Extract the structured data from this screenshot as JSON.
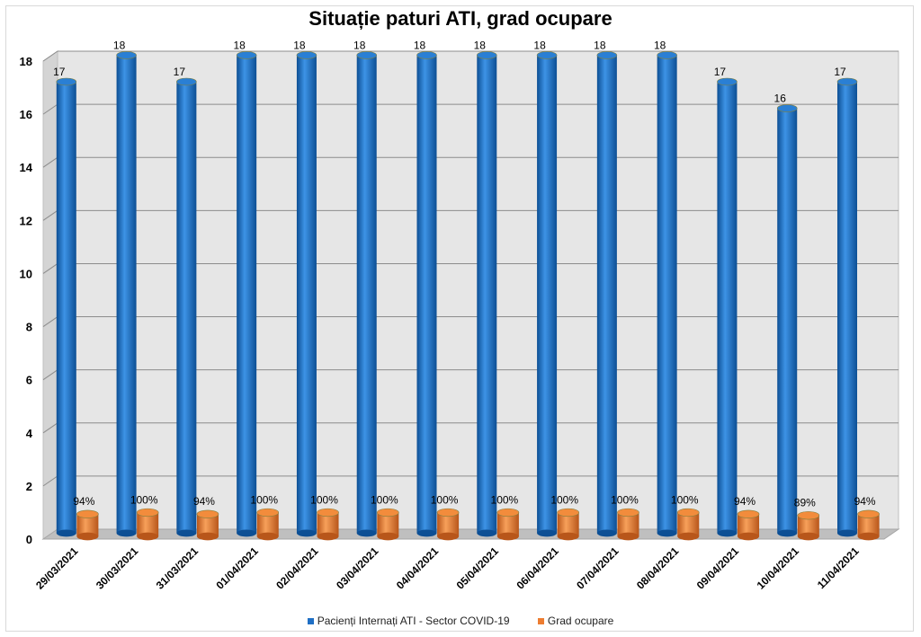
{
  "chart_data": {
    "type": "bar",
    "title": "Situație paturi ATI, grad ocupare",
    "categories": [
      "29/03/2021",
      "30/03/2021",
      "31/03/2021",
      "01/04/2021",
      "02/04/2021",
      "03/04/2021",
      "04/04/2021",
      "05/04/2021",
      "06/04/2021",
      "07/04/2021",
      "08/04/2021",
      "09/04/2021",
      "10/04/2021",
      "11/04/2021"
    ],
    "series": [
      {
        "name": "Pacienți Internați ATI - Sector COVID-19",
        "color": "#1f6fc5",
        "values": [
          17,
          18,
          17,
          18,
          18,
          18,
          18,
          18,
          18,
          18,
          18,
          17,
          16,
          17
        ],
        "labels": [
          "17",
          "18",
          "17",
          "18",
          "18",
          "18",
          "18",
          "18",
          "18",
          "18",
          "18",
          "17",
          "16",
          "17"
        ]
      },
      {
        "name": "Grad ocupare",
        "color": "#ed7d31",
        "values": [
          0.94,
          1.0,
          0.94,
          1.0,
          1.0,
          1.0,
          1.0,
          1.0,
          1.0,
          1.0,
          1.0,
          0.94,
          0.89,
          0.94
        ],
        "labels": [
          "94%",
          "100%",
          "94%",
          "100%",
          "100%",
          "100%",
          "100%",
          "100%",
          "100%",
          "100%",
          "100%",
          "94%",
          "89%",
          "94%"
        ]
      }
    ],
    "yticks": [
      "0",
      "2",
      "4",
      "6",
      "8",
      "10",
      "12",
      "14",
      "16",
      "18"
    ],
    "ylim": [
      0,
      18
    ],
    "grid": true,
    "legend_position": "bottom"
  }
}
